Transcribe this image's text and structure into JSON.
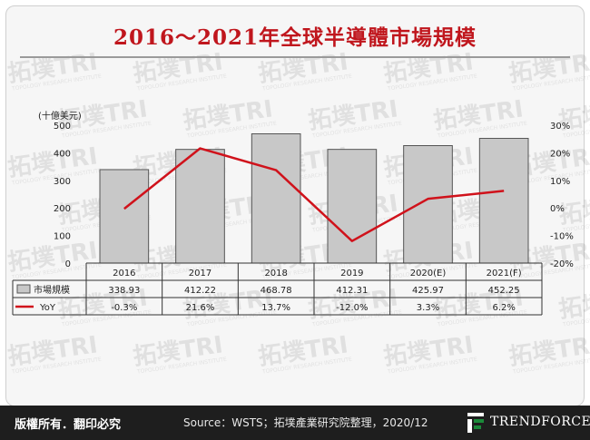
{
  "title": "2016～2021年全球半導體市場規模",
  "footer": {
    "rights": "版權所有．翻印必究",
    "source": "Source：WSTS；拓墣產業研究院整理，2020/12",
    "brand": "TRENDFORCE"
  },
  "watermark": {
    "text": "拓墣TRI",
    "subtext": "TOPOLOGY RESEARCH INSTITUTE"
  },
  "colors": {
    "title": "#c0161d",
    "bar_fill": "#c8c8c8",
    "bar_stroke": "#555555",
    "line": "#d0121b",
    "footer_bg": "#1e1e1e",
    "logo_green": "#1b8a3a"
  },
  "chart_data": {
    "type": "bar",
    "categories": [
      "2016",
      "2017",
      "2018",
      "2019",
      "2020(E)",
      "2021(F)"
    ],
    "ylabel": "(十億美元)",
    "ylim": [
      0,
      500
    ],
    "yticks": [
      "0",
      "100",
      "200",
      "300",
      "400",
      "500"
    ],
    "y2lim": [
      -20,
      30
    ],
    "y2ticks": [
      "-20%",
      "-10%",
      "0%",
      "10%",
      "20%",
      "30%"
    ],
    "series": [
      {
        "name": "市場規模",
        "type": "bar",
        "values": [
          338.93,
          412.22,
          468.78,
          412.31,
          425.97,
          452.25
        ],
        "labels": [
          "338.93",
          "412.22",
          "468.78",
          "412.31",
          "425.97",
          "452.25"
        ]
      },
      {
        "name": "YoY",
        "type": "line",
        "axis": "right",
        "values": [
          -0.3,
          21.6,
          13.7,
          -12.0,
          3.3,
          6.2
        ],
        "labels": [
          "-0.3%",
          "21.6%",
          "13.7%",
          "-12.0%",
          "3.3%",
          "6.2%"
        ]
      }
    ],
    "grid": false,
    "legend": "table-bottom"
  }
}
